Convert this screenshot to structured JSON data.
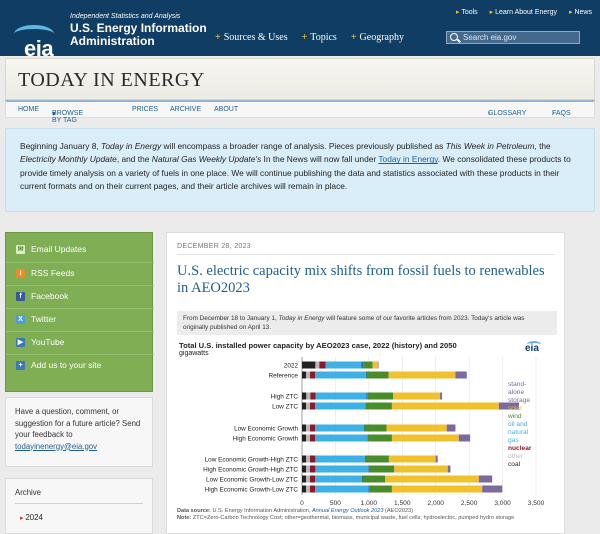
{
  "header": {
    "tagline": "Independent Statistics and Analysis",
    "org_name": "U.S. Energy Information Administration",
    "logo_text": "eia",
    "top_links": [
      "Tools",
      "Learn About Energy",
      "News"
    ],
    "main_nav": [
      "Sources & Uses",
      "Topics",
      "Geography"
    ],
    "search_placeholder": "Search eia.gov"
  },
  "page_title": "TODAY IN ENERGY",
  "subnav": {
    "items": [
      "HOME",
      "BROWSE BY TAG",
      "PRICES",
      "ARCHIVE",
      "ABOUT"
    ],
    "right": [
      "GLOSSARY",
      "FAQS"
    ]
  },
  "notice": {
    "p1": "Beginning January 8, ",
    "p1_italic": "Today in Energy",
    "p2": " will encompass a broader range of analysis. Pieces previously published as ",
    "p2_italic": "This Week in Petroleum",
    "p3": ", the ",
    "p3_italic": "Electricity Monthly Update",
    "p4": ", and the ",
    "p4_italic": "Natural Gas Weekly Update's",
    "p5": " In the News will now fall under ",
    "p5_link": "Today in Energy",
    "p6": ". We consolidated these products to provide timely analysis on a variety of fuels in one place. We will continue publishing the data and statistics associated with these products in their current formats and on their current pages, and their article archives will remain in place."
  },
  "sidebar": {
    "items": [
      "Email Updates",
      "RSS Feeds",
      "Facebook",
      "Twitter",
      "YouTube",
      "Add us to your site"
    ],
    "question": "Have a question, comment, or suggestion for a future article? Send your feedback to",
    "email": "todayinenergy@eia.gov",
    "archive_label": "Archive",
    "archive_year": "2024"
  },
  "article": {
    "date": "DECEMBER 28, 2023",
    "headline": "U.S. electric capacity mix shifts from fossil fuels to renewables in AEO2023",
    "intro_a": "From December 18 to January 1, ",
    "intro_italic": "Today in Energy",
    "intro_b": " will feature some of our favorite articles from 2023. Today's article was originally published on April 13."
  },
  "colors": {
    "coal": "#222222",
    "other": "#b8b8b8",
    "nuclear": "#8b1a2b",
    "natural_gas": "#3fb0e6",
    "oil": "#2a6bb5",
    "wind": "#4a8b2a",
    "solar": "#f0c12c",
    "storage": "#7a6a9e"
  },
  "chart_data": {
    "type": "bar",
    "stacked": true,
    "orientation": "horizontal",
    "title": "Total U.S. installed power capacity by AEO2023 case, 2022 (history) and 2050",
    "subtitle": "gigawatts",
    "logo": "eia",
    "categories": [
      "2022",
      "Reference",
      "High ZTC",
      "Low ZTC",
      "Low Economic Growth",
      "High Economic Growth",
      "Low Economic Growth-High ZTC",
      "High Economic Growth-High ZTC",
      "Low Economic Growth-Low ZTC",
      "High Economic Growth-Low ZTC"
    ],
    "xlim": [
      0,
      3500
    ],
    "xticks": [
      "0",
      "500",
      "1,000",
      "1,500",
      "2,000",
      "2,500",
      "3,000",
      "3,500"
    ],
    "series": [
      {
        "name": "coal",
        "values": [
          200,
          60,
          65,
          60,
          60,
          60,
          60,
          60,
          60,
          60
        ]
      },
      {
        "name": "other",
        "values": [
          60,
          60,
          60,
          60,
          60,
          60,
          60,
          60,
          60,
          60
        ]
      },
      {
        "name": "nuclear",
        "values": [
          95,
          75,
          80,
          75,
          75,
          75,
          80,
          80,
          75,
          75
        ]
      },
      {
        "name": "natural gas",
        "values": [
          530,
          760,
          760,
          750,
          730,
          780,
          740,
          790,
          700,
          800
        ]
      },
      {
        "name": "oil",
        "values": [
          30,
          10,
          10,
          10,
          10,
          10,
          10,
          10,
          10,
          10
        ]
      },
      {
        "name": "wind",
        "values": [
          140,
          330,
          390,
          390,
          330,
          360,
          350,
          380,
          340,
          340
        ]
      },
      {
        "name": "solar",
        "values": [
          80,
          1000,
          700,
          1600,
          900,
          1000,
          700,
          800,
          1400,
          1350
        ]
      },
      {
        "name": "stand-alone storage",
        "values": [
          10,
          170,
          30,
          300,
          130,
          170,
          30,
          40,
          200,
          300
        ]
      }
    ],
    "legend_labels": [
      "stand-alone storage",
      "solar",
      "wind",
      "oil and natural gas",
      "nuclear",
      "other",
      "coal"
    ],
    "legend_position": "right",
    "source_label": "Data source:",
    "source_text": "U.S. Energy Information Administration,",
    "source_italic": "Annual Energy Outlook 2023",
    "source_tail": "(AEO2023)",
    "note_label": "Note:",
    "note_text": "ZTC=Zero-Carbon Technology Cost; other=geothermal, biomass, municipal waste, fuel cells, hydroelectric, pumped hydro storage"
  }
}
